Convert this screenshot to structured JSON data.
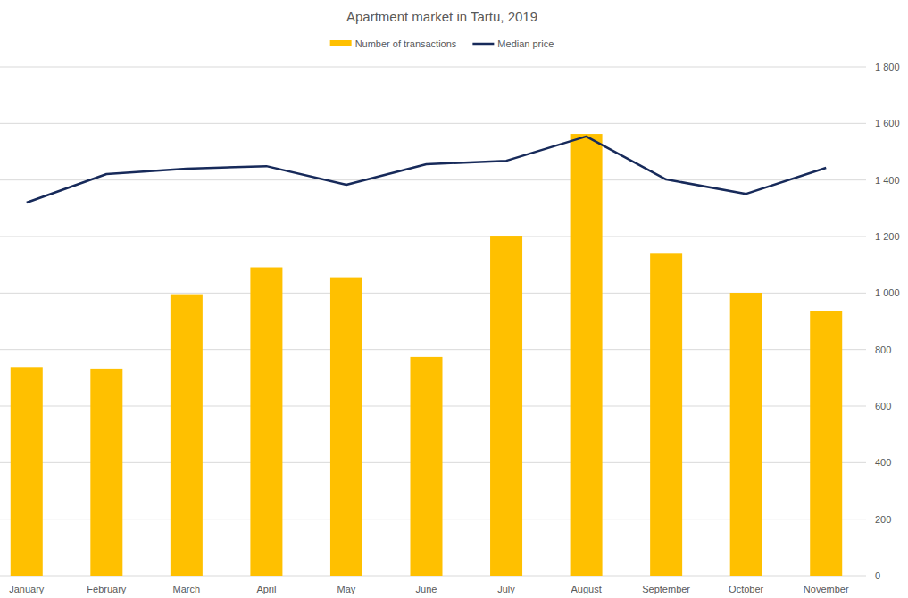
{
  "chart_data": {
    "type": "bar",
    "title": "Apartment market in Tartu, 2019",
    "categories": [
      "January",
      "February",
      "March",
      "April",
      "May",
      "June",
      "July",
      "August",
      "September",
      "October",
      "November"
    ],
    "series": [
      {
        "name": "Number of transactions",
        "type": "bar",
        "color": "#ffc000",
        "values": [
          738,
          733,
          996,
          1091,
          1056,
          774,
          1203,
          1563,
          1139,
          1001,
          935
        ]
      },
      {
        "name": "Median price",
        "type": "line",
        "color": "#172a5a",
        "values": [
          1320,
          1421,
          1440,
          1449,
          1383,
          1456,
          1468,
          1554,
          1402,
          1351,
          1443
        ]
      }
    ],
    "ylim": [
      0,
      1800
    ],
    "yticks": [
      0,
      200,
      400,
      600,
      800,
      {
        "value": 1000,
        "label": "1 000"
      },
      {
        "value": 1200,
        "label": "1 200"
      },
      {
        "value": 1400,
        "label": "1 400"
      },
      {
        "value": 1600,
        "label": "1 600"
      },
      {
        "value": 1800,
        "label": "1 800"
      }
    ],
    "grid": true,
    "legend": "top"
  }
}
